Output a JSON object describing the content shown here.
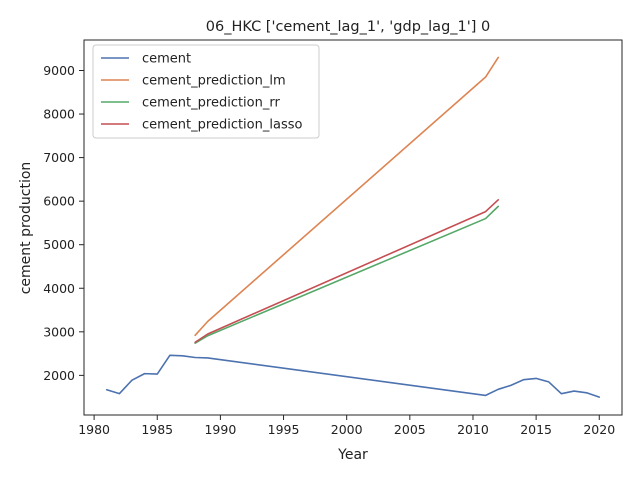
{
  "chart_data": {
    "type": "line",
    "title": "06_HKC ['cement_lag_1', 'gdp_lag_1'] 0",
    "xlabel": "Year",
    "ylabel": "cement production",
    "xlim": [
      1979.2,
      2021.8
    ],
    "ylim": [
      1090,
      9700
    ],
    "xticks": [
      1980,
      1985,
      1990,
      1995,
      2000,
      2005,
      2010,
      2015,
      2020
    ],
    "yticks": [
      2000,
      3000,
      4000,
      5000,
      6000,
      7000,
      8000,
      9000
    ],
    "grid": false,
    "legend_position": "top-left",
    "series": [
      {
        "name": "cement",
        "color": "#4c72b0",
        "x": [
          1981,
          1982,
          1983,
          1984,
          1985,
          1986,
          1987,
          1988,
          1989,
          2011,
          2012,
          2013,
          2014,
          2015,
          2016,
          2017,
          2018,
          2019,
          2020
        ],
        "y": [
          1670,
          1580,
          1890,
          2040,
          2030,
          2460,
          2450,
          2410,
          2400,
          1540,
          1680,
          1770,
          1900,
          1930,
          1850,
          1580,
          1640,
          1600,
          1500
        ]
      },
      {
        "name": "cement_prediction_lm",
        "color": "#dd8452",
        "x": [
          1988,
          1989,
          2011,
          2012
        ],
        "y": [
          2920,
          3240,
          8850,
          9300
        ]
      },
      {
        "name": "cement_prediction_rr",
        "color": "#55a868",
        "x": [
          1988,
          1989,
          2011,
          2012
        ],
        "y": [
          2740,
          2910,
          5600,
          5880
        ]
      },
      {
        "name": "cement_prediction_lasso",
        "color": "#c44e52",
        "x": [
          1988,
          1989,
          2011,
          2012
        ],
        "y": [
          2760,
          2950,
          5760,
          6030
        ]
      }
    ]
  }
}
